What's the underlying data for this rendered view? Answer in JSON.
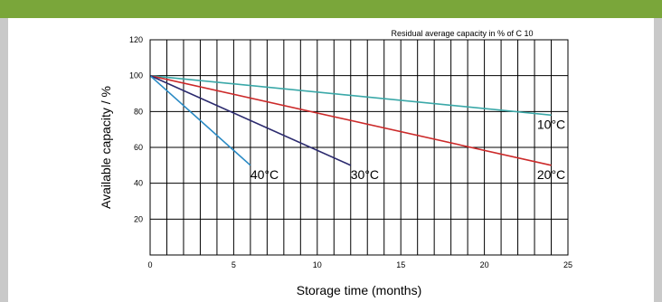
{
  "colors": {
    "top_bar": "#7aa63a",
    "side_border": "#c9c9c9"
  },
  "chart_data": {
    "type": "line",
    "title": "",
    "note": "Residual average capacity in % of C 10",
    "xlabel": "Storage time (months)",
    "ylabel": "Available capacity / %",
    "xlim": [
      0,
      25
    ],
    "ylim": [
      0,
      120
    ],
    "x_ticks": [
      0,
      5,
      10,
      15,
      20,
      25
    ],
    "y_ticks": [
      20,
      40,
      60,
      80,
      100,
      120
    ],
    "x_gridlines": "every 1 month",
    "grid": true,
    "series": [
      {
        "name": "10°C",
        "color": "#3aa8a8",
        "x": [
          0,
          24
        ],
        "y": [
          100,
          78
        ]
      },
      {
        "name": "20°C",
        "color": "#cc2a2a",
        "x": [
          0,
          24
        ],
        "y": [
          100,
          50
        ]
      },
      {
        "name": "30°C",
        "color": "#2b2a6e",
        "x": [
          0,
          12
        ],
        "y": [
          100,
          50
        ]
      },
      {
        "name": "40°C",
        "color": "#2a8ac4",
        "x": [
          0,
          6
        ],
        "y": [
          100,
          50
        ]
      }
    ]
  }
}
